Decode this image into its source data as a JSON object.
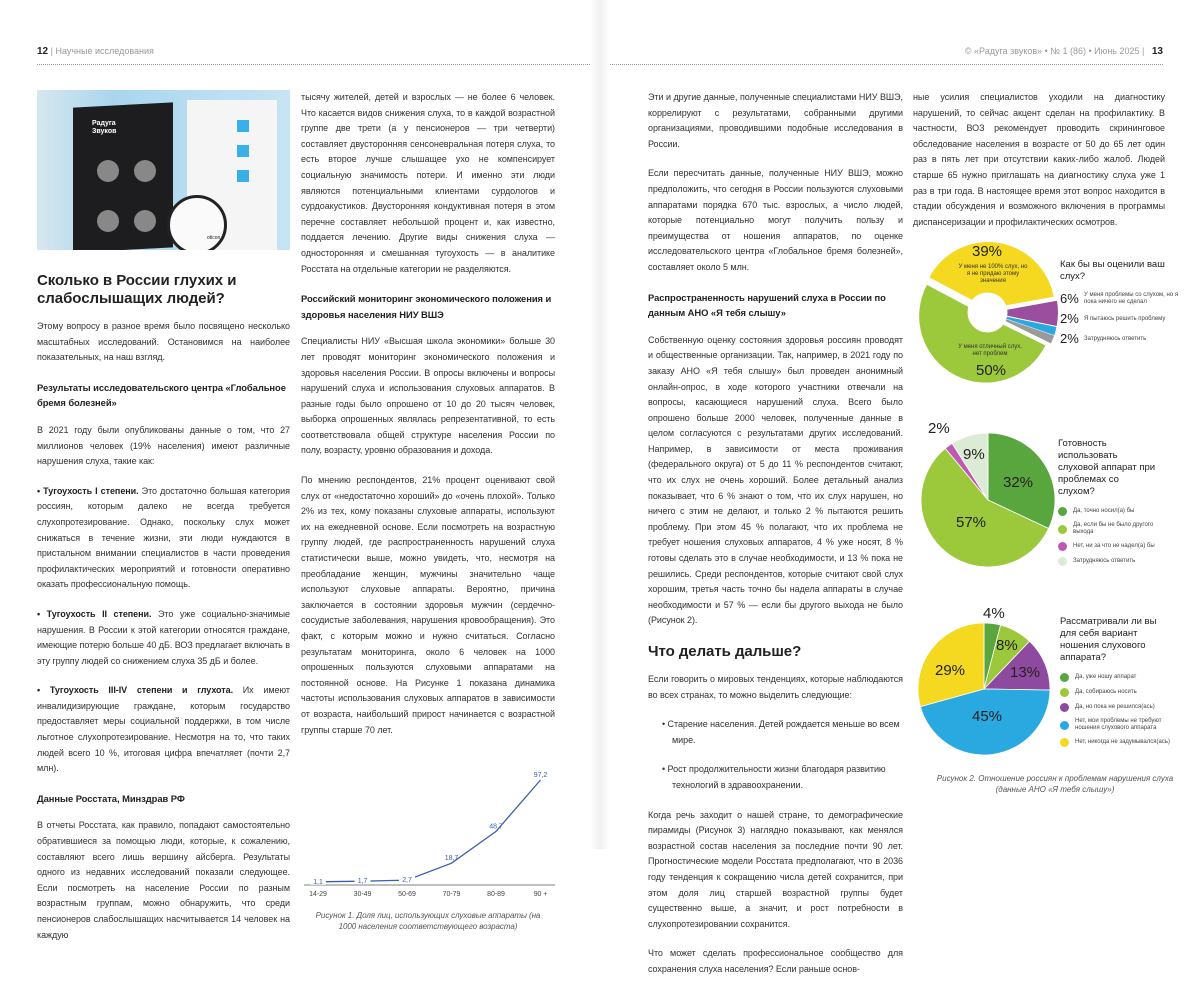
{
  "header": {
    "left_page": "12",
    "left_section": "Научные исследования",
    "right_info": "© «Радуга звуков» • № 1 (86) • Июнь 2025",
    "right_page": "13"
  },
  "photo": {
    "logo_text": "Радуга Звуков",
    "brand": "oticon"
  },
  "col1": {
    "title": "Сколько в России глухих и слабослышащих людей?",
    "p1": "Этому вопросу в разное время было посвящено несколько масштабных исследований. Остановимся на наиболее показательных, на наш взгляд.",
    "h1": "Результаты исследовательского центра «Глобальное бремя болезней»",
    "p2": "В 2021 году были опубликованы данные о том, что 27 миллионов человек (19% населения) имеют различные нарушения слуха, такие как:",
    "b1_title": "• Тугоухость I степени.",
    "b1": " Это достаточно большая категория россиян, которым далеко не всегда требуется слухопротезирование. Однако, поскольку слух может снижаться в течение жизни, эти люди нуждаются в пристальном внимании специалистов в части проведения профилактических мероприятий и готовности оперативно оказать профессиональную помощь.",
    "b2_title": "• Тугоухость II степени.",
    "b2": " Это уже социально-значимые нарушения. В России к этой категории относятся граждане, имеющие потерю больше 40 дБ. ВОЗ предлагает включать в эту группу людей со снижением слуха 35 дБ и более.",
    "b3_title": "• Тугоухость III-IV степени и глухота.",
    "b3": " Их имеют инвалидизирующие граждане, которым государство предоставляет меры социальной поддержки, в том числе льготное слухопротезирование. Несмотря на то, что таких людей всего 10 %, итоговая цифра впечатляет (почти 2,7 млн).",
    "h2": "Данные Росстата, Минздрав РФ",
    "p3": "В отчеты Росстата, как правило, попадают самостоятельно обратившиеся за помощью люди, которые, к сожалению, составляют всего лишь вершину айсберга. Результаты одного из недавних исследований показали следующее. Если посмотреть на население России по разным возрастным группам, можно обнаружить, что среди пенсионеров слабослышащих насчитывается 14 человек на каждую"
  },
  "col2": {
    "p1": "тысячу жителей, детей и взрослых — не более 6 человек. Что касается видов снижения слуха, то в каждой возрастной группе две трети (а у пенсионеров — три четверти) составляет двусторонняя сенсоневральная потеря слуха, то есть второе лучше слышащее ухо не компенсирует социальную значимость потери. И именно эти люди являются потенциальными клиентами сурдологов и сурдоакустиков. Двусторонняя кондуктивная потеря в этом перечне составляет небольшой процент и, как известно, поддается лечению. Другие виды снижения слуха — односторонняя и смешанная тугоухость — в аналитике Росстата на отдельные категории не разделяются.",
    "h1": "Российский мониторинг экономического положения и здоровья населения НИУ ВШЭ",
    "p2": "Специалисты НИУ «Высшая школа экономики» больше 30 лет проводят мониторинг экономического положения и здоровья населения России. В опросы включены и вопросы нарушений слуха и использования слуховых аппаратов. В разные годы было опрошено от 10 до 20 тысяч человек, выборка опрошенных являлась репрезентативной, то есть соответствовала общей структуре населения России по полу, возрасту, уровню образования и дохода.",
    "p3": "По мнению респондентов, 21% процент оценивают свой слух от «недостаточно хороший» до «очень плохой». Только 2% из тех, кому показаны слуховые аппараты, используют их на ежедневной основе. Если посмотреть на возрастную группу людей, где распространенность нарушений слуха статистически выше, можно увидеть, что, несмотря на преобладание женщин, мужчины значительно чаще используют слуховые аппараты. Вероятно, причина заключается в состоянии здоровья мужчин (сердечно-сосудистые заболевания, нарушения кровообращения). Это факт, с которым можно и нужно считаться. Согласно результатам мониторинга, около 6 человек на 1000 опрошенных пользуются слуховыми аппаратами на постоянной основе. На Рисунке 1 показана динамика частоты использования слуховых аппаратов в зависимости от возраста, наибольший прирост начинается с возрастной группы старше 70 лет.",
    "caption": "Рисунок 1. Доля лиц, использующих слуховые аппараты (на 1000 населения соответствующего возраста)"
  },
  "col3": {
    "p1": "Эти и другие данные, полученные специалистами НИУ ВШЭ, коррелируют с результатами, собранными другими организациями, проводившими подобные исследования в России.",
    "p2": "Если пересчитать данные, полученные НИУ ВШЭ, можно предположить, что сегодня в России пользуются слуховыми аппаратами порядка 670 тыс. взрослых, а число людей, которые потенциально могут получить пользу и преимущества от ношения аппаратов, по оценке исследовательского центра «Глобальное бремя болезней», составляет около 5 млн.",
    "h1": "Распространенность нарушений слуха в России по данным АНО «Я тебя слышу»",
    "p3": "Собственную оценку состояния здоровья россиян проводят и общественные организации. Так, например, в 2021 году по заказу АНО «Я тебя слышу» был проведен анонимный онлайн-опрос, в ходе которого участники отвечали на вопросы, касающиеся нарушений слуха. Всего было опрошено больше 2000 человек, полученные данные в целом согласуются с результатами других исследований. Например, в зависимости от места проживания (федерального округа) от 5 до 11 % респондентов считают, что их слух не очень хороший. Более детальный анализ показывает, что 6 % знают о том, что их слух нарушен, но ничего с этим не делают, и только 2 % пытаются решить проблему. При этом 45 % полагают, что их проблема не требует ношения слуховых аппаратов, 4 % уже носят, 8 % готовы сделать это в случае необходимости, и 13 % пока не решились. Среди респондентов, которые считают свой слух хорошим, третья часть точно бы надела аппараты в случае необходимости и 57 % — если бы другого выхода не было (Рисунок 2).",
    "title": "Что делать дальше?",
    "p4": "Если говорить о мировых тенденциях, которые наблюдаются во всех странах, то можно выделить следующие:",
    "bullets": [
      "• Старение населения. Детей рождается меньше во всем мире.",
      "• Рост продолжительности жизни благодаря развитию технологий в здравоохранении."
    ],
    "p5": "Когда речь заходит о нашей стране, то демографические пирамиды (Рисунок 3) наглядно показывают, как менялся возрастной состав населения за последние почти 90 лет. Прогностические модели Росстата предполагают, что в 2036 году тенденция к сокращению числа детей сохранится, при этом доля лиц старшей возрастной группы будет существенно выше, а значит, и рост потребности в слухопротезировании сохранится.",
    "p6": "Что может сделать профессиональное сообщество для сохранения слуха населения? Если раньше основ-"
  },
  "col4": {
    "p1": "ные усилия специалистов уходили на диагностику нарушений, то сейчас акцент сделан на профилактику. В частности, ВОЗ рекомендует проводить скрининговое обследование населения в возрасте от 50 до 65 лет один раз в пять лет при отсутствии каких-либо жалоб. Людей старше 65 нужно приглашать на диагностику слуха уже 1 раз в три года. В настоящее время этот вопрос находится в стадии обсуждения и возможного включения в программы диспансеризации и профилактических осмотров.",
    "caption": "Рисунок 2. Отношение россиян к проблемам нарушения слуха (данные АНО «Я тебя слышу»)"
  },
  "chart_data": [
    {
      "type": "line",
      "title": "Рисунок 1. Доля лиц, использующих слуховые аппараты (на 1000 населения соответствующего возраста)",
      "categories": [
        "14-29",
        "30-49",
        "50-69",
        "70-79",
        "80-89",
        "90 +"
      ],
      "values": [
        1.1,
        1.7,
        2.7,
        18.7,
        48.7,
        97.2
      ],
      "labels": [
        "1,1",
        "1,7",
        "2,7",
        "18,7",
        "48,7",
        "97,2"
      ],
      "color": "#3b5fb0",
      "grid": false
    },
    {
      "type": "pie",
      "donut": true,
      "title": "Как бы вы оценили ваш слух?",
      "slices": [
        {
          "label": "У меня не 100% слух, но я не придаю этому значения",
          "value": 39,
          "color": "#f5d820"
        },
        {
          "label": "У меня проблемы со слухом, но я пока ничего не сделал",
          "value": 6,
          "color": "#9b4d9e"
        },
        {
          "label": "Я пытаюсь решить проблему",
          "value": 2,
          "color": "#2aa8e0"
        },
        {
          "label": "Затрудняюсь ответить",
          "value": 2,
          "color": "#9a9a9a"
        },
        {
          "label": "У меня отличный слух, нет проблем",
          "value": 50,
          "color": "#9cc83c"
        }
      ]
    },
    {
      "type": "pie",
      "title": "Готовность использовать слуховой аппарат при проблемах со слухом?",
      "slices": [
        {
          "label": "Да, точно носил(а) бы",
          "value": 32,
          "color": "#5aa63e"
        },
        {
          "label": "Да, если бы не было другого выхода",
          "value": 57,
          "color": "#9cc83c"
        },
        {
          "label": "Нет, ни за что не надел(а) бы",
          "value": 2,
          "color": "#c05ab0"
        },
        {
          "label": "Затрудняюсь ответить",
          "value": 9,
          "color": "#dcebd6"
        }
      ]
    },
    {
      "type": "pie",
      "title": "Рассматривали ли вы для себя вариант ношения слухового аппарата?",
      "slices": [
        {
          "label": "Да, уже ношу аппарат",
          "value": 4,
          "color": "#5aa63e"
        },
        {
          "label": "Да, собираюсь носить",
          "value": 8,
          "color": "#9cc83c"
        },
        {
          "label": "Да, но пока не решился(ась)",
          "value": 13,
          "color": "#8e4a9e"
        },
        {
          "label": "Нет, мои проблемы не требуют ношения слухового аппарата",
          "value": 45,
          "color": "#2aa8e0"
        },
        {
          "label": "Нет, никогда не задумывался(ась)",
          "value": 29,
          "color": "#f5d820"
        }
      ]
    }
  ]
}
